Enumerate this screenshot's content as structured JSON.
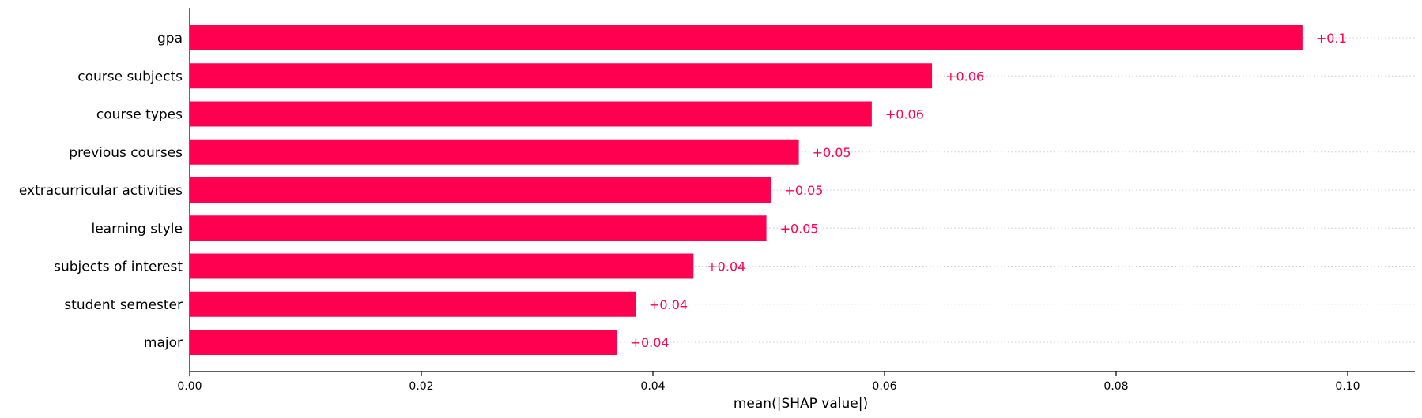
{
  "chart_data": {
    "type": "bar",
    "orientation": "horizontal",
    "title": "",
    "xlabel": "mean(|SHAP value|)",
    "ylabel": "",
    "xlim": [
      0,
      0.106
    ],
    "xticks": [
      0.0,
      0.02,
      0.04,
      0.06,
      0.08,
      0.1
    ],
    "xtick_labels": [
      "0.00",
      "0.02",
      "0.04",
      "0.06",
      "0.08",
      "0.10"
    ],
    "grid": false,
    "categories": [
      "gpa",
      "course subjects",
      "course types",
      "previous courses",
      "extracurricular activities",
      "learning style",
      "subjects of interest",
      "student semester",
      "major"
    ],
    "values": [
      0.0961,
      0.0641,
      0.0589,
      0.0526,
      0.0502,
      0.0498,
      0.0435,
      0.0385,
      0.0369
    ],
    "value_labels": [
      "+0.1",
      "+0.06",
      "+0.06",
      "+0.05",
      "+0.05",
      "+0.05",
      "+0.04",
      "+0.04",
      "+0.04"
    ],
    "colors": {
      "bar": "#ff0051",
      "label": "#ff0051",
      "axis": "#000000",
      "guide": "#cccccc"
    }
  }
}
